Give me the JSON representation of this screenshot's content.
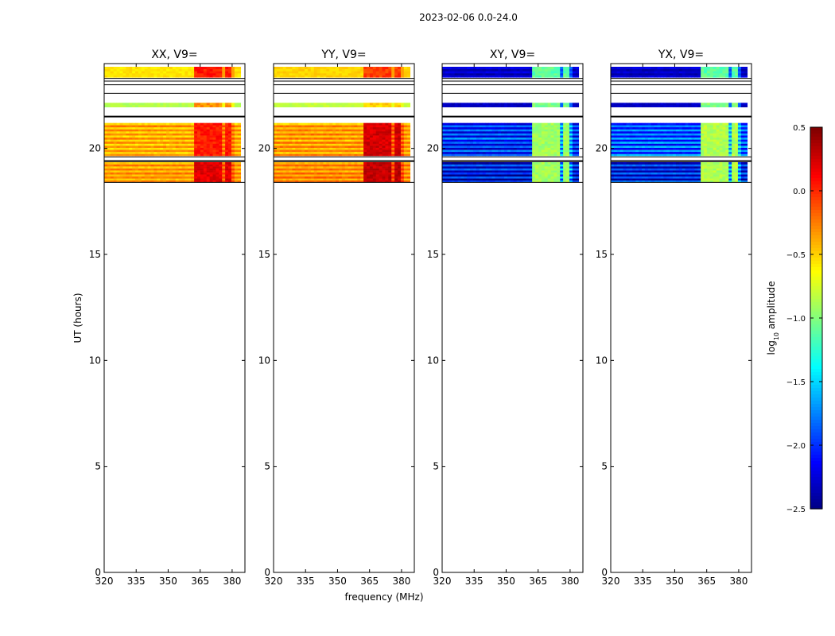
{
  "chart_data": {
    "type": "heatmap",
    "title": "2023-02-06 0.0-24.0",
    "xlabel": "frequency (MHz)",
    "ylabel": "UT (hours)",
    "xlim": [
      320,
      386
    ],
    "ylim": [
      0,
      24
    ],
    "x_ticks": [
      320,
      335,
      350,
      365,
      380
    ],
    "y_ticks": [
      0,
      5,
      10,
      15,
      20
    ],
    "colorbar": {
      "label_main": "log",
      "label_sub": "10",
      "label_tail": " amplitude",
      "range": [
        -2.5,
        0.5
      ],
      "ticks": [
        0.5,
        0.0,
        -0.5,
        -1.0,
        -1.5,
        -2.0,
        -2.5
      ],
      "tick_labels": [
        "0.5",
        "0.0",
        "−0.5",
        "−1.0",
        "−1.5",
        "−2.0",
        "−2.5"
      ]
    },
    "flag_lines_ut": [
      23.3,
      23.0,
      22.6,
      21.5,
      19.6,
      19.4,
      18.4
    ],
    "panels": [
      {
        "name": "XX, V9=",
        "bands": [
          {
            "ut": [
              23.35,
              23.85
            ],
            "base": -0.55,
            "rfi": 0.05,
            "stripe": 0.0
          },
          {
            "ut": [
              21.95,
              22.15
            ],
            "base": -0.85,
            "rfi": -0.3,
            "stripe": 0.0
          },
          {
            "ut": [
              19.65,
              21.2
            ],
            "base": -0.4,
            "rfi": 0.05,
            "stripe": 0.18
          },
          {
            "ut": [
              18.4,
              19.35
            ],
            "base": -0.35,
            "rfi": 0.2,
            "stripe": 0.15
          }
        ]
      },
      {
        "name": "YY, V9=",
        "bands": [
          {
            "ut": [
              23.35,
              23.85
            ],
            "base": -0.5,
            "rfi": -0.05,
            "stripe": 0.0
          },
          {
            "ut": [
              21.95,
              22.15
            ],
            "base": -0.8,
            "rfi": -0.5,
            "stripe": 0.0
          },
          {
            "ut": [
              19.65,
              21.2
            ],
            "base": -0.35,
            "rfi": 0.25,
            "stripe": 0.18
          },
          {
            "ut": [
              18.4,
              19.35
            ],
            "base": -0.3,
            "rfi": 0.3,
            "stripe": 0.15
          }
        ]
      },
      {
        "name": "XY, V9=",
        "bands": [
          {
            "ut": [
              23.35,
              23.85
            ],
            "base": -2.3,
            "rfi": -1.1,
            "stripe": 0.1
          },
          {
            "ut": [
              21.95,
              22.15
            ],
            "base": -2.3,
            "rfi": -1.0,
            "stripe": 0.0
          },
          {
            "ut": [
              19.65,
              21.2
            ],
            "base": -2.0,
            "rfi": -0.9,
            "stripe": 0.35
          },
          {
            "ut": [
              18.4,
              19.35
            ],
            "base": -2.15,
            "rfi": -0.9,
            "stripe": 0.35
          }
        ]
      },
      {
        "name": "YX, V9=",
        "bands": [
          {
            "ut": [
              23.35,
              23.85
            ],
            "base": -2.3,
            "rfi": -1.1,
            "stripe": 0.1
          },
          {
            "ut": [
              21.95,
              22.15
            ],
            "base": -2.3,
            "rfi": -1.0,
            "stripe": 0.0
          },
          {
            "ut": [
              19.65,
              21.2
            ],
            "base": -1.9,
            "rfi": -0.85,
            "stripe": 0.35
          },
          {
            "ut": [
              18.4,
              19.35
            ],
            "base": -2.1,
            "rfi": -0.85,
            "stripe": 0.35
          }
        ]
      }
    ],
    "rfi_channels_mhz": [
      363,
      365,
      367,
      369,
      371,
      373,
      375,
      377,
      379
    ]
  }
}
